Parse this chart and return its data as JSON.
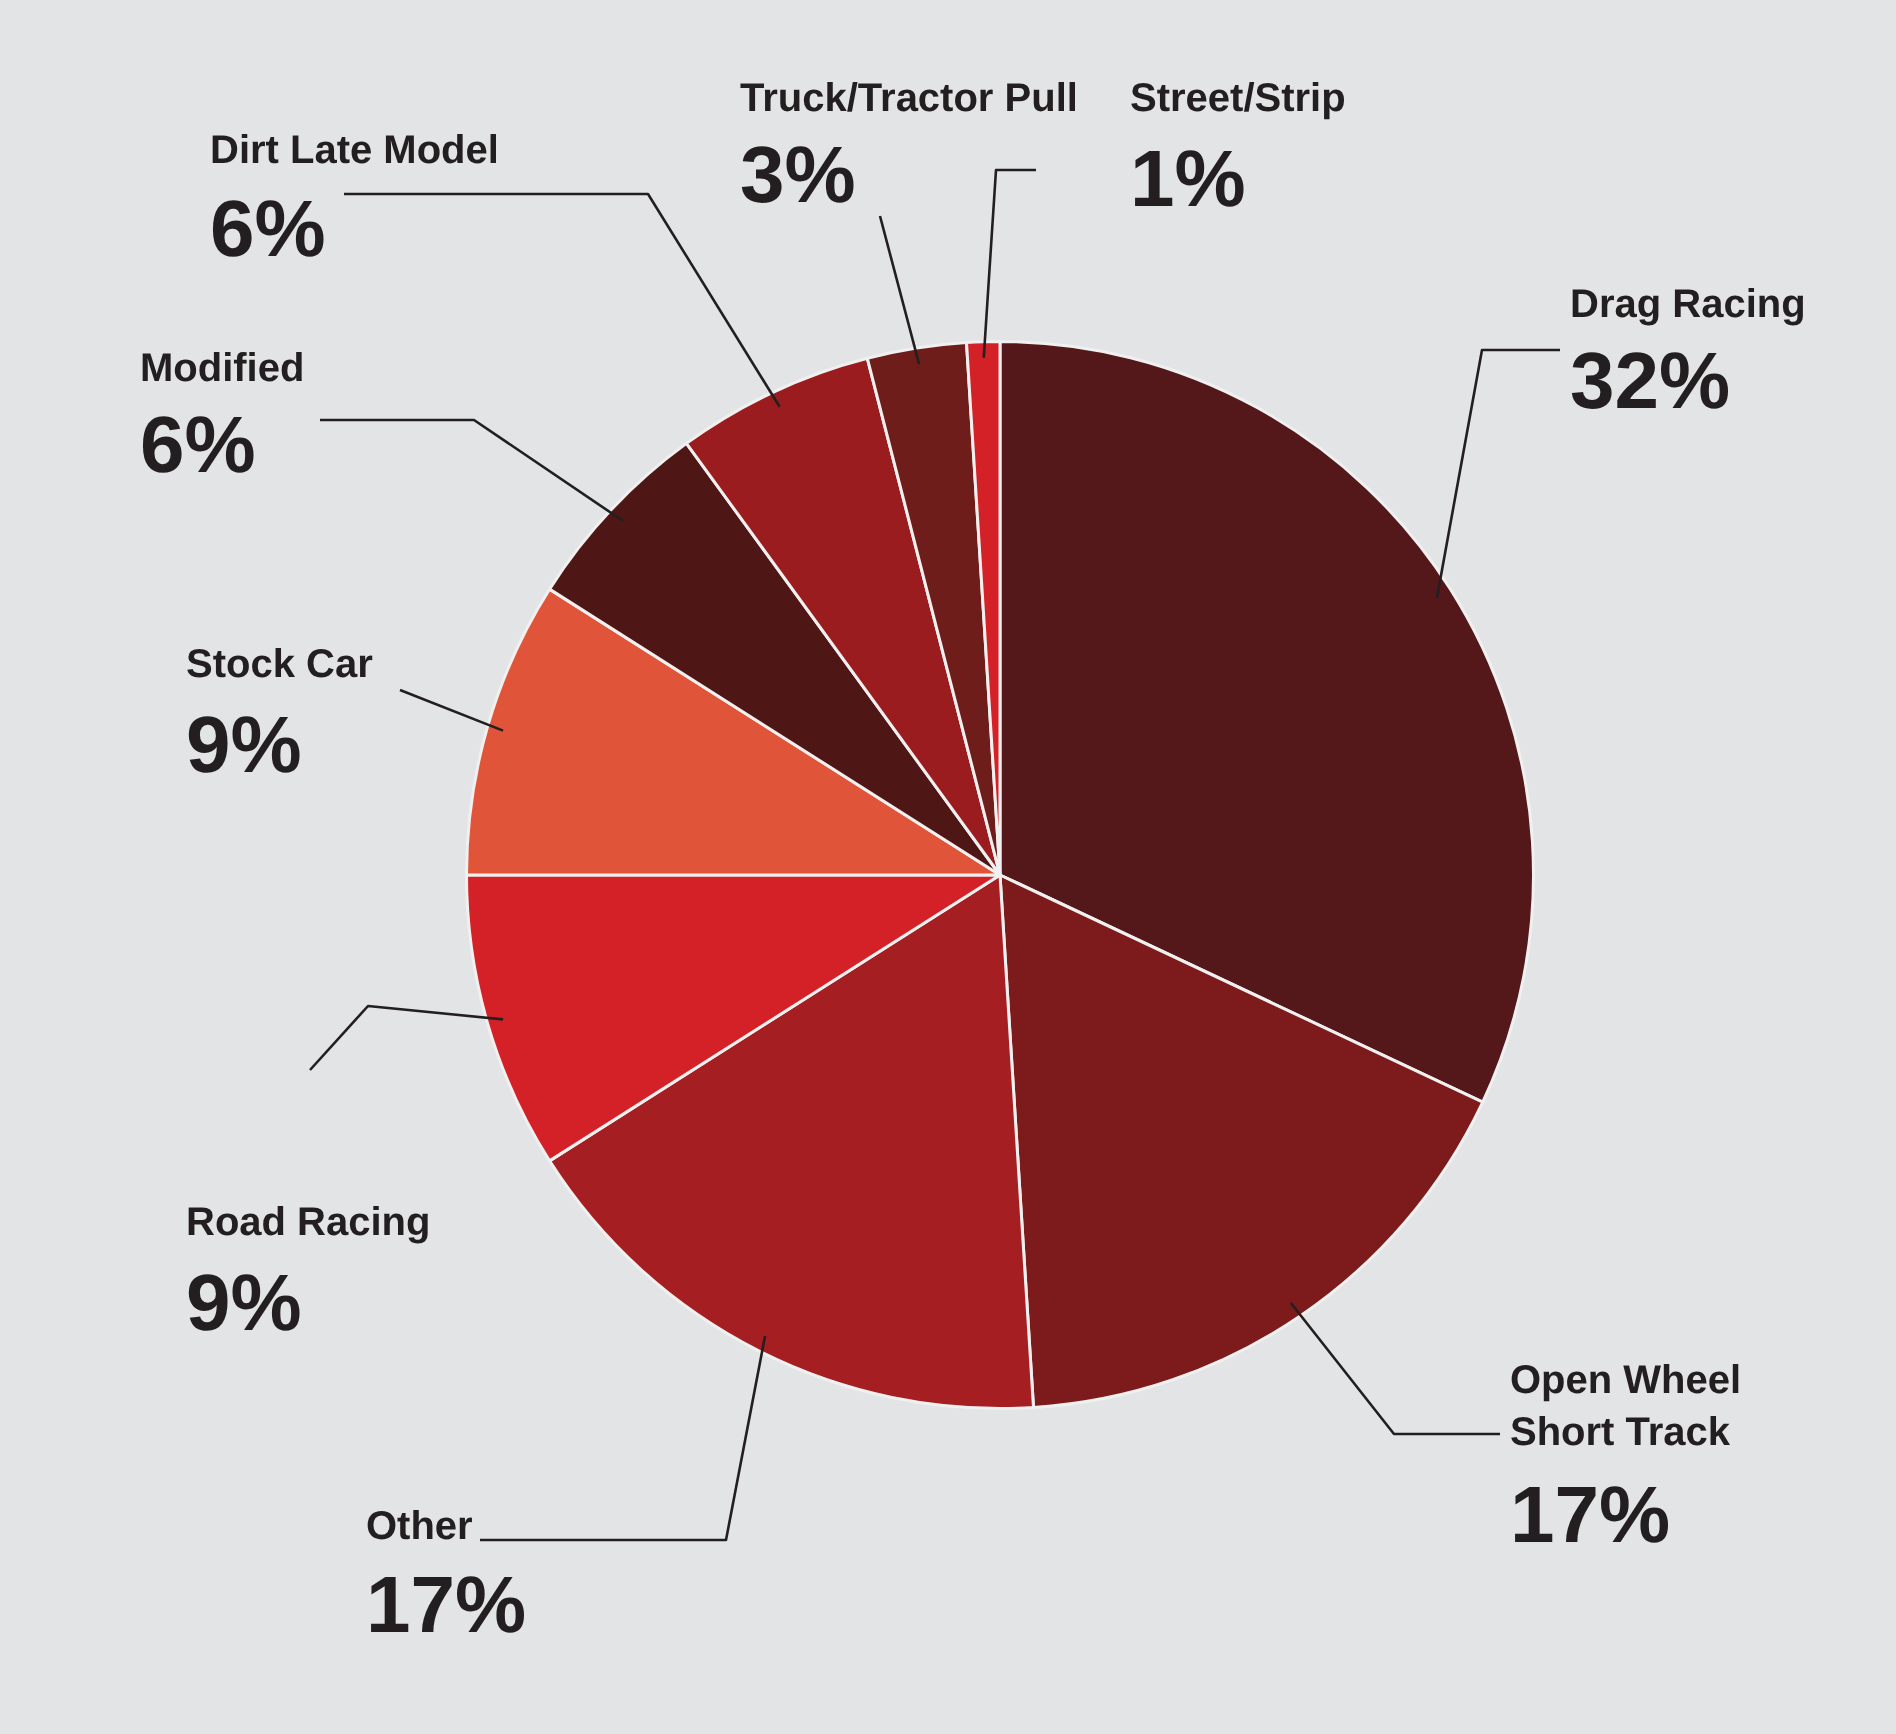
{
  "chart_data": {
    "type": "pie",
    "categories": [
      "Drag Racing",
      "Open Wheel Short Track",
      "Other",
      "Road Racing",
      "Stock Car",
      "Modified",
      "Dirt Late Model",
      "Truck/Tractor Pull",
      "Street/Strip"
    ],
    "values": [
      32,
      17,
      17,
      9,
      9,
      6,
      6,
      3,
      1
    ],
    "value_labels": [
      "32%",
      "17%",
      "17%",
      "9%",
      "9%",
      "6%",
      "6%",
      "3%",
      "1%"
    ],
    "colors": [
      "#54171a",
      "#7d1b1c",
      "#a51e21",
      "#d42127",
      "#e0553a",
      "#4e1715",
      "#9b1c1e",
      "#6e1d1a",
      "#d42127"
    ]
  }
}
